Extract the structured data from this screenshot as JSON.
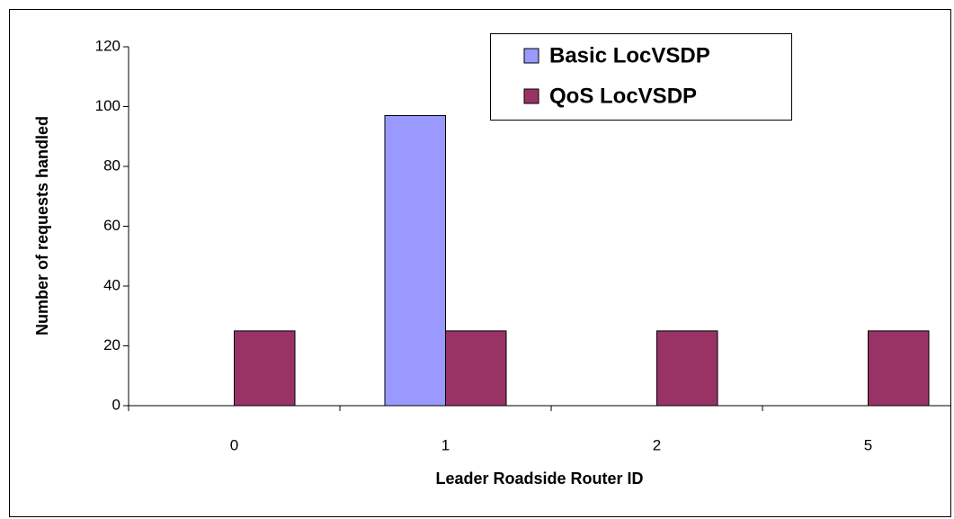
{
  "chart_data": {
    "type": "bar",
    "x_label": "Leader Roadside Router ID",
    "y_label": "Number of requests handled",
    "categories": [
      "0",
      "1",
      "2",
      "5"
    ],
    "series": [
      {
        "name": "Basic LocVSDP",
        "color": "#9999ff",
        "values": [
          0,
          97,
          0,
          0
        ]
      },
      {
        "name": "QoS LocVSDP",
        "color": "#993366",
        "values": [
          25,
          25,
          25,
          25
        ]
      }
    ],
    "ylim": [
      0,
      120
    ],
    "yticks": [
      0,
      20,
      40,
      60,
      80,
      100,
      120
    ]
  }
}
